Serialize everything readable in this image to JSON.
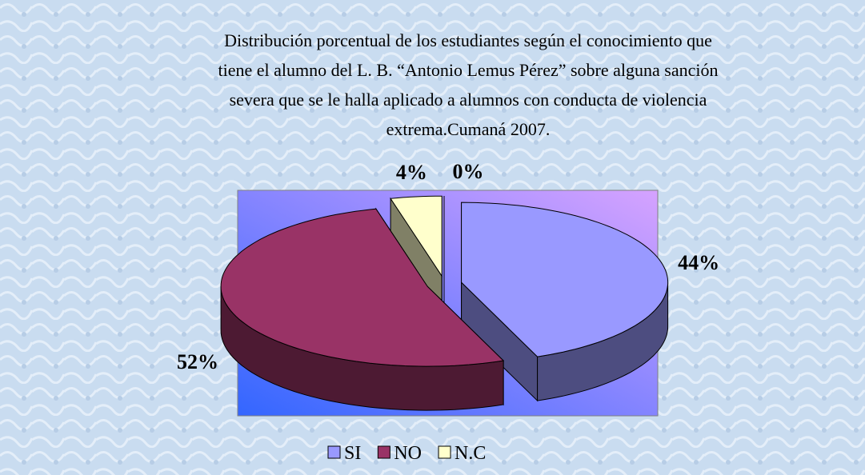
{
  "chart_data": {
    "type": "pie3d",
    "title": [
      "Distribución porcentual de los estudiantes según el conocimiento que",
      "tiene el alumno del L. B. “Antonio Lemus Pérez” sobre alguna sanción",
      "severa que se le halla aplicado a alumnos  con  conducta de violencia",
      "extrema.Cumaná 2007."
    ],
    "categories": [
      "SI",
      "NO",
      "N.C",
      null
    ],
    "values": [
      44,
      52,
      4,
      0
    ],
    "value_labels": [
      "44%",
      "52%",
      "4%",
      "0%"
    ],
    "colors": [
      "#9999ff",
      "#993366",
      "#ffffcc",
      "#ffffff"
    ],
    "legend": "bottom"
  }
}
